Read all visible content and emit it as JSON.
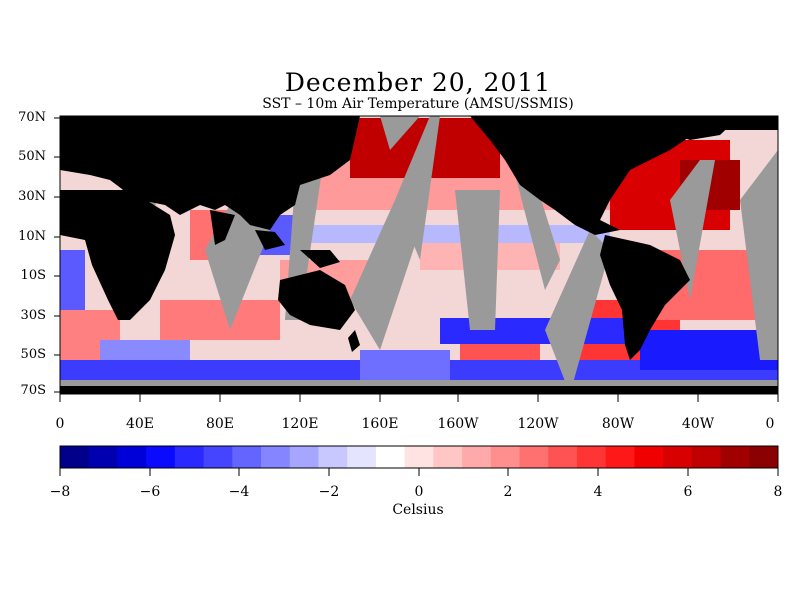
{
  "map": {
    "title": "December 20, 2011",
    "subtitle": "SST – 10m Air Temperature (AMSU/SSMIS)",
    "lat_labels": [
      "70N",
      "50N",
      "30N",
      "10N",
      "10S",
      "30S",
      "50S",
      "70S"
    ],
    "lon_labels": [
      "0",
      "40E",
      "80E",
      "120E",
      "160E",
      "160W",
      "120W",
      "80W",
      "40W",
      "0"
    ],
    "colors": {
      "land": "#000000",
      "no_data": "#9a9a9a"
    }
  },
  "colorbar": {
    "tick_labels": [
      "−8",
      "−6",
      "−4",
      "−2",
      "0",
      "2",
      "4",
      "6",
      "8"
    ],
    "units": "Celsius",
    "range": [
      -8,
      8
    ],
    "colors": [
      "#00008b",
      "#0000b0",
      "#0000d8",
      "#0a0aff",
      "#2a2aff",
      "#4545ff",
      "#6464ff",
      "#8585ff",
      "#a6a6ff",
      "#c8c8ff",
      "#e4e4ff",
      "#ffffff",
      "#ffe2e2",
      "#ffc6c6",
      "#ffaaaa",
      "#ff8e8e",
      "#ff7070",
      "#ff5252",
      "#ff3535",
      "#ff1818",
      "#f00000",
      "#d80000",
      "#c00000",
      "#a00000",
      "#8b0000"
    ]
  }
}
